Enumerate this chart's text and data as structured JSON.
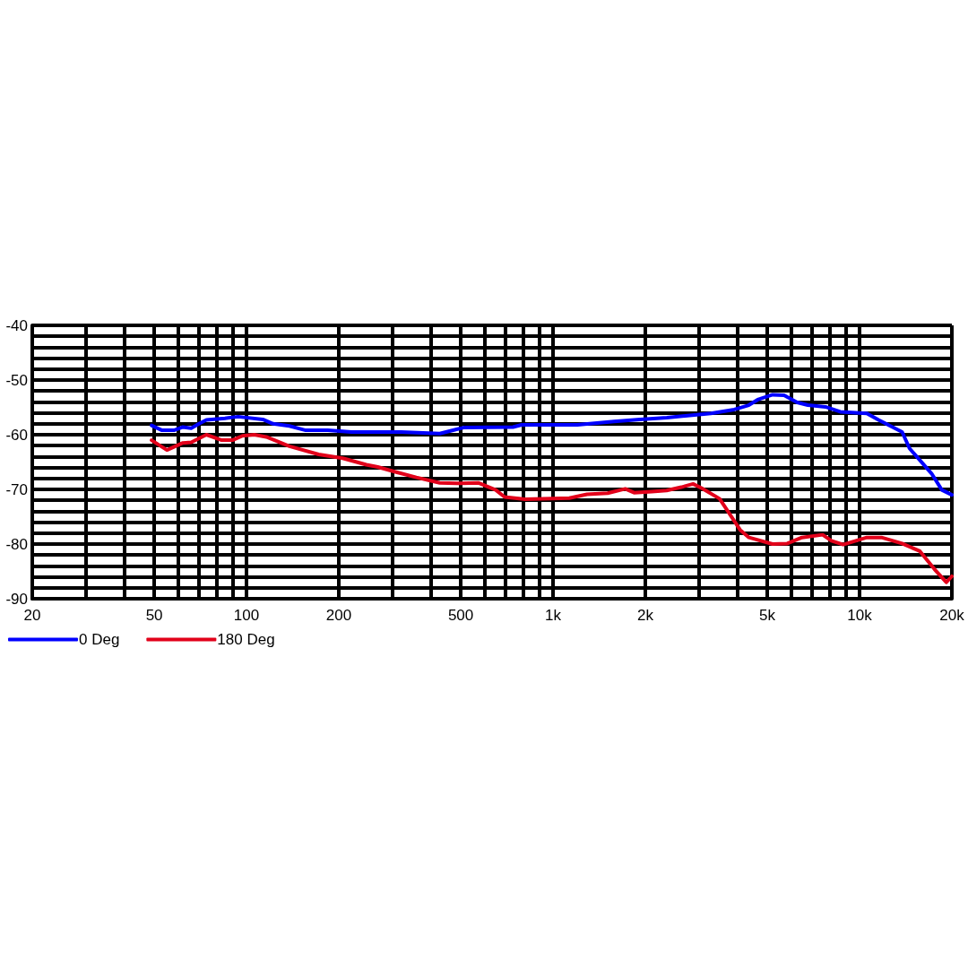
{
  "chart_data": {
    "type": "line",
    "log": "x",
    "grid": true,
    "legend": "bottom left",
    "marker": "none",
    "line_style": "solid",
    "xlim": [
      20,
      20000
    ],
    "xticks": [
      20,
      {
        "value": 30,
        "label": null
      },
      {
        "value": 40,
        "label": null
      },
      50,
      {
        "value": 60,
        "label": null
      },
      {
        "value": 70,
        "label": null
      },
      {
        "value": 80,
        "label": null
      },
      {
        "value": 90,
        "label": null
      },
      100,
      200,
      {
        "value": 300,
        "label": null
      },
      {
        "value": 400,
        "label": null
      },
      500,
      {
        "value": 600,
        "label": null
      },
      {
        "value": 700,
        "label": null
      },
      {
        "value": 800,
        "label": null
      },
      {
        "value": 900,
        "label": null
      },
      {
        "value": 1000,
        "label": "1k"
      },
      {
        "value": 2000,
        "label": "2k"
      },
      {
        "value": 3000,
        "label": null
      },
      {
        "value": 4000,
        "label": null
      },
      {
        "value": 5000,
        "label": "5k"
      },
      {
        "value": 6000,
        "label": null
      },
      {
        "value": 7000,
        "label": null
      },
      {
        "value": 8000,
        "label": null
      },
      {
        "value": 9000,
        "label": null
      },
      {
        "value": 10000,
        "label": "10k"
      },
      {
        "value": 20000,
        "label": "20k"
      }
    ],
    "ylim": [
      -90,
      -40
    ],
    "yticks": [
      -90,
      {
        "value": -88,
        "label": null
      },
      {
        "value": -86,
        "label": null
      },
      {
        "value": -84,
        "label": null
      },
      {
        "value": -82,
        "label": null
      },
      -80,
      {
        "value": -78,
        "label": null
      },
      {
        "value": -76,
        "label": null
      },
      {
        "value": -74,
        "label": null
      },
      {
        "value": -72,
        "label": null
      },
      -70,
      {
        "value": -68,
        "label": null
      },
      {
        "value": -66,
        "label": null
      },
      {
        "value": -64,
        "label": null
      },
      {
        "value": -62,
        "label": null
      },
      -60,
      {
        "value": -58,
        "label": null
      },
      {
        "value": -56,
        "label": null
      },
      {
        "value": -54,
        "label": null
      },
      {
        "value": -52,
        "label": null
      },
      -50,
      {
        "value": -48,
        "label": null
      },
      {
        "value": -46,
        "label": null
      },
      {
        "value": -44,
        "label": null
      },
      {
        "value": -42,
        "label": null
      },
      -40
    ],
    "series": [
      {
        "name": "0 Deg",
        "color": "#0000ff",
        "x": [
          49,
          53,
          58,
          62,
          66,
          70,
          74,
          85,
          94,
          113,
          122,
          138,
          156,
          184,
          220,
          320,
          427,
          510,
          740,
          790,
          1200,
          1580,
          1920,
          2350,
          3270,
          3900,
          4350,
          4650,
          5200,
          5670,
          6260,
          6780,
          7740,
          8650,
          10560,
          11530,
          13770,
          14550,
          17170,
          18550,
          20000
        ],
        "values": [
          -58.3,
          -59.2,
          -59.2,
          -58.6,
          -58.8,
          -58.0,
          -57.3,
          -57.0,
          -56.7,
          -57.2,
          -58.0,
          -58.4,
          -59.2,
          -59.2,
          -59.5,
          -59.5,
          -59.8,
          -58.7,
          -58.6,
          -58.2,
          -58.2,
          -57.6,
          -57.2,
          -56.9,
          -56.1,
          -55.4,
          -54.6,
          -53.6,
          -52.7,
          -52.8,
          -54.1,
          -54.6,
          -54.9,
          -55.8,
          -56.1,
          -57.3,
          -59.5,
          -62.5,
          -67.1,
          -70.1,
          -71.0
        ]
      },
      {
        "name": "180 Deg",
        "color": "#e2001a",
        "x": [
          49,
          55,
          62,
          66,
          74,
          83,
          90,
          97,
          106,
          116,
          138,
          172,
          206,
          246,
          268,
          306,
          358,
          427,
          499,
          570,
          650,
          695,
          811,
          1130,
          1290,
          1507,
          1720,
          1838,
          2099,
          2346,
          2620,
          2862,
          3058,
          3492,
          4076,
          4356,
          5200,
          5808,
          6486,
          7577,
          8096,
          8844,
          10558,
          11786,
          13766,
          15726,
          17550,
          19180,
          20000
        ],
        "values": [
          -61.0,
          -62.8,
          -61.5,
          -61.4,
          -60.0,
          -61.0,
          -61.0,
          -60.2,
          -60.0,
          -60.4,
          -62.1,
          -63.6,
          -64.3,
          -65.5,
          -65.9,
          -66.8,
          -67.8,
          -68.8,
          -68.9,
          -68.8,
          -70.1,
          -71.4,
          -71.8,
          -71.6,
          -70.9,
          -70.7,
          -69.9,
          -70.6,
          -70.4,
          -70.2,
          -69.6,
          -69.0,
          -69.8,
          -71.7,
          -77.4,
          -78.8,
          -80.0,
          -79.9,
          -78.8,
          -78.3,
          -79.4,
          -80.1,
          -78.8,
          -78.8,
          -79.9,
          -81.3,
          -84.6,
          -87.0,
          -85.9
        ]
      }
    ]
  }
}
